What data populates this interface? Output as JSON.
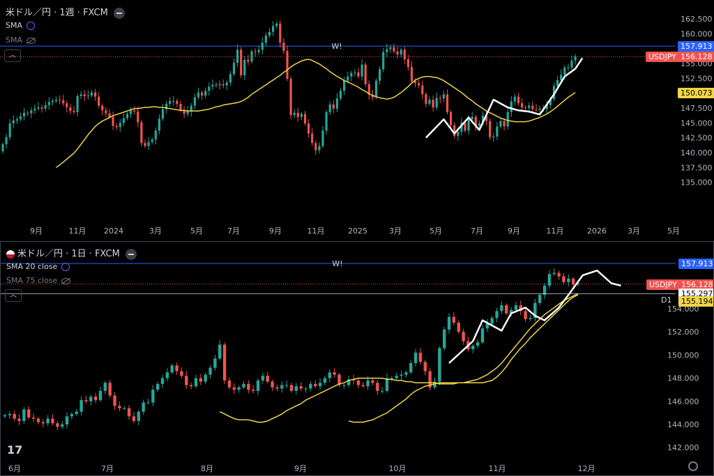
{
  "top": {
    "title": "米ドル／円 · 1週 · FXCM",
    "indicator1": "SMA",
    "indicator2": "SMA",
    "yticks": [
      "162.500",
      "160.000",
      "157.500",
      "155.000",
      "152.500",
      "150.000",
      "147.500",
      "145.000",
      "142.500",
      "140.000",
      "137.500",
      "135.000"
    ],
    "xticks": [
      "9月",
      "11月",
      "2024",
      "3月",
      "5月",
      "7月",
      "9月",
      "11月",
      "2025",
      "3月",
      "5月",
      "7月",
      "9月",
      "11月",
      "2026",
      "3月",
      "5月"
    ],
    "alert_marker": "W!",
    "price_line_label": "157.913",
    "symbol_label": "USDJPY",
    "last_price_label": "156.128",
    "sma_label": "150.073"
  },
  "bottom": {
    "title": "米ドル／円 · 1日 · FXCM",
    "indicator1": "SMA 20 close",
    "indicator2": "SMA 75 close",
    "yticks": [
      "154.000",
      "152.000",
      "150.000",
      "148.000",
      "146.000",
      "144.000",
      "142.000"
    ],
    "xticks": [
      "6月",
      "7月",
      "8月",
      "9月",
      "10月",
      "11月",
      "12月"
    ],
    "alert_marker": "W!",
    "price_line_label": "157.913",
    "symbol_label": "USDJPY",
    "last_price_label": "156.128",
    "sma_label_white": "155.297",
    "sma_label_yellow": "155.194",
    "timeframe_label": "D1",
    "logo": "17"
  },
  "colors": {
    "up": "#26a69a",
    "down": "#ef5350",
    "sma": "#f0d548",
    "alert_line": "#2962ff",
    "price_line": "#ef5350",
    "background": "#000000",
    "text": "#d1d4dc"
  },
  "chart_data": [
    {
      "type": "candlestick",
      "title": "米ドル／円 · 1週 · FXCM",
      "ylim": [
        135,
        163
      ],
      "x_range": [
        "2023-08",
        "2026-05"
      ],
      "alert_level": 157.913,
      "last_price": 156.128,
      "sma_last": 150.073,
      "close": [
        141.4,
        142.6,
        144.9,
        145.4,
        145.6,
        146.1,
        146.7,
        146.6,
        147.1,
        147.4,
        147.6,
        147.4,
        148.0,
        148.5,
        148.7,
        148.9,
        148.8,
        148.3,
        147.6,
        147.0,
        146.8,
        149.5,
        149.8,
        149.5,
        149.6,
        150.1,
        149.4,
        147.9,
        147.1,
        146.6,
        146.0,
        144.5,
        144.3,
        145.0,
        145.8,
        146.5,
        147.1,
        146.9,
        145.1,
        141.6,
        141.1,
        141.8,
        142.2,
        143.7,
        145.7,
        147.3,
        148.2,
        148.7,
        148.7,
        148.2,
        147.1,
        146.5,
        146.9,
        147.9,
        149.3,
        150.1,
        149.6,
        150.4,
        151.1,
        151.4,
        151.3,
        151.5,
        151.3,
        151.8,
        153.2,
        155.1,
        157.3,
        153.0,
        155.6,
        155.3,
        157.0,
        156.9,
        157.3,
        158.5,
        159.7,
        160.3,
        161.3,
        161.7,
        158.5,
        157.1,
        152.4,
        146.3,
        146.7,
        146.0,
        146.5,
        144.9,
        143.2,
        141.6,
        140.4,
        141.1,
        143.7,
        146.8,
        148.1,
        147.4,
        149.1,
        150.4,
        152.1,
        152.8,
        153.4,
        153.5,
        152.8,
        154.8,
        151.5,
        149.7,
        149.3,
        152.1,
        154.0,
        156.9,
        157.4,
        157.7,
        157.0,
        156.5,
        157.3,
        155.7,
        154.4,
        152.0,
        151.7,
        151.3,
        149.8,
        148.2,
        148.9,
        147.6,
        149.2,
        149.1,
        149.8,
        146.8,
        144.6,
        142.8,
        143.5,
        145.0,
        143.7,
        145.6,
        146.0,
        144.5,
        144.9,
        146.2,
        145.3,
        142.6,
        142.7,
        144.4,
        145.3,
        144.4,
        146.8,
        148.6,
        149.4,
        148.3,
        147.6,
        147.5,
        147.9,
        147.3,
        147.2,
        147.4,
        147.3,
        148.0,
        149.0,
        151.2,
        152.2,
        153.1,
        154.3,
        154.3,
        155.5,
        156.2
      ],
      "sma_series": [
        137.5,
        137.9,
        138.4,
        138.9,
        139.4,
        139.9,
        140.6,
        141.4,
        142.2,
        143.0,
        143.7,
        144.4,
        144.9,
        145.3,
        145.6,
        145.9,
        146.2,
        146.4,
        146.6,
        146.8,
        147.0,
        147.2,
        147.4,
        147.4,
        147.5,
        147.6,
        147.6,
        147.7,
        147.7,
        147.6,
        147.6,
        147.5,
        147.4,
        147.3,
        147.2,
        147.1,
        147.1,
        147.0,
        147.0,
        147.0,
        147.0,
        147.1,
        147.2,
        147.3,
        147.5,
        147.7,
        147.8,
        148.0,
        148.1,
        148.2,
        148.3,
        148.4,
        148.6,
        148.9,
        149.3,
        149.8,
        150.2,
        150.6,
        151.0,
        151.4,
        151.8,
        152.2,
        152.6,
        153.0,
        153.5,
        153.9,
        154.4,
        154.8,
        155.1,
        155.4,
        155.6,
        155.7,
        155.5,
        155.2,
        154.9,
        154.5,
        154.1,
        153.6,
        153.2,
        152.8,
        152.5,
        152.1,
        151.9,
        151.6,
        151.3,
        151.0,
        150.6,
        150.3,
        149.9,
        149.6,
        149.4,
        149.2,
        149.1,
        149.0,
        149.1,
        149.3,
        149.7,
        150.1,
        150.6,
        151.1,
        151.7,
        152.2,
        152.5,
        152.7,
        152.8,
        152.8,
        152.7,
        152.6,
        152.4,
        152.1,
        151.7,
        151.3,
        150.9,
        150.5,
        150.1,
        149.6,
        149.1,
        148.7,
        148.2,
        147.8,
        147.4,
        147.0,
        146.7,
        146.4,
        146.1,
        145.8,
        145.6,
        145.4,
        145.3,
        145.2,
        145.2,
        145.2,
        145.2,
        145.3,
        145.5,
        145.7,
        145.9,
        146.2,
        146.5,
        146.9,
        147.3,
        147.8,
        148.3,
        148.8,
        149.3,
        149.7,
        150.1
      ]
    },
    {
      "type": "candlestick",
      "title": "米ドル／円 · 1日 · FXCM",
      "ylim": [
        141.2,
        157.9
      ],
      "x_range": [
        "2025-06",
        "2025-12"
      ],
      "alert_level": 157.913,
      "last_price": 156.128,
      "sma20_last": 155.297,
      "sma75_last": 155.194,
      "close": [
        144.8,
        144.9,
        144.5,
        144.3,
        145.3,
        144.6,
        144.5,
        144.2,
        144.1,
        144.5,
        144.1,
        143.8,
        144.0,
        144.7,
        144.9,
        145.1,
        146.1,
        146.0,
        146.4,
        146.1,
        146.9,
        147.6,
        146.5,
        145.6,
        145.4,
        145.4,
        144.7,
        144.3,
        145.1,
        145.9,
        145.9,
        147.0,
        147.5,
        148.0,
        148.5,
        149.1,
        148.6,
        148.2,
        147.4,
        147.3,
        148.0,
        147.7,
        148.3,
        148.9,
        149.7,
        150.9,
        147.8,
        147.2,
        147.0,
        147.2,
        147.5,
        147.0,
        146.9,
        147.8,
        148.2,
        147.7,
        147.2,
        147.1,
        147.4,
        147.4,
        146.9,
        147.3,
        147.1,
        147.1,
        147.5,
        147.3,
        147.6,
        148.0,
        148.5,
        148.3,
        147.4,
        147.4,
        147.9,
        147.8,
        147.4,
        147.3,
        147.8,
        147.6,
        146.9,
        146.9,
        148.0,
        148.0,
        148.2,
        148.3,
        148.5,
        149.3,
        150.2,
        149.4,
        148.6,
        147.2,
        147.7,
        150.6,
        152.2,
        153.3,
        152.8,
        152.0,
        151.2,
        150.5,
        150.8,
        151.1,
        152.3,
        152.7,
        153.2,
        153.8,
        154.3,
        153.6,
        153.9,
        154.3,
        153.8,
        153.1,
        153.2,
        154.5,
        155.2,
        156.0,
        157.0,
        157.1,
        156.8,
        156.3,
        156.6,
        156.1,
        156.2
      ],
      "sma20_series": [
        145.1,
        144.9,
        144.7,
        144.5,
        144.4,
        144.4,
        144.4,
        144.3,
        144.2,
        144.2,
        144.3,
        144.5,
        144.7,
        144.9,
        145.2,
        145.4,
        145.6,
        145.8,
        146.1,
        146.3,
        146.5,
        146.7,
        146.9,
        147.1,
        147.3,
        147.5,
        147.6,
        147.8,
        147.9,
        148.0,
        148.0,
        148.0,
        148.0,
        148.0,
        148.0,
        147.9,
        147.9,
        147.8,
        147.8,
        147.7,
        147.7,
        147.6,
        147.6,
        147.6,
        147.6,
        147.6,
        147.5,
        147.5,
        147.5,
        147.5,
        147.6,
        147.6,
        147.7,
        147.8,
        147.9,
        148.1,
        148.3,
        148.6,
        148.9,
        149.3,
        149.8,
        150.3,
        150.8,
        151.3,
        151.8,
        152.3,
        152.7,
        153.1,
        153.5,
        153.8,
        154.1,
        154.4,
        154.7,
        154.9,
        155.1,
        155.3
      ],
      "sma75_series": [
        144.3,
        144.2,
        144.2,
        144.2,
        144.3,
        144.4,
        144.6,
        144.8,
        145.0,
        145.3,
        145.6,
        145.9,
        146.2,
        146.6,
        146.9,
        147.1,
        147.3,
        147.4,
        147.5,
        147.6,
        147.6,
        147.6,
        147.6,
        147.6,
        147.6,
        147.6,
        147.6,
        147.6,
        147.6,
        147.7,
        147.8,
        148.1,
        148.5,
        149.0,
        149.6,
        150.1,
        150.6,
        151.0,
        151.5,
        151.9,
        152.3,
        152.7,
        153.1,
        153.5,
        153.9,
        154.3,
        154.7,
        155.0,
        155.2
      ]
    }
  ]
}
